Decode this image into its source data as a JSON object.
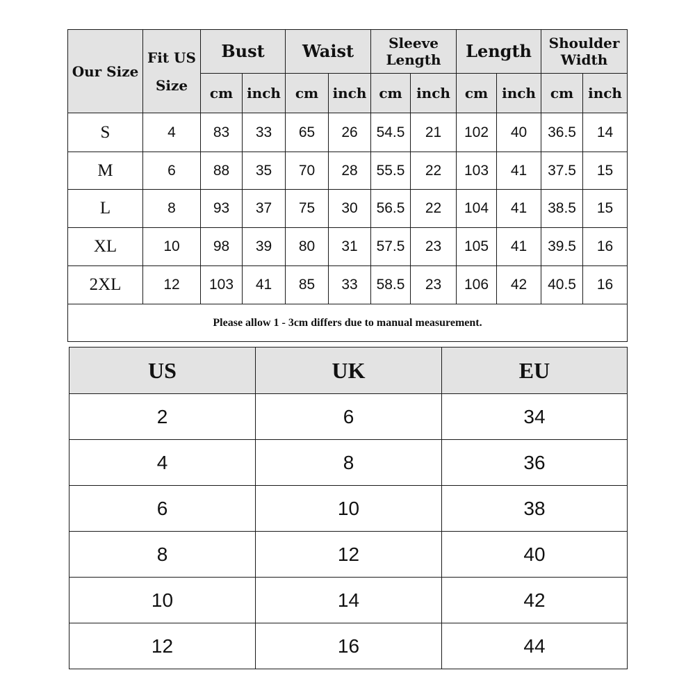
{
  "size_chart": {
    "headers": {
      "our_size": "Our Size",
      "fit_us_line1": "Fit US",
      "fit_us_line2": "Size",
      "bust": "Bust",
      "waist": "Waist",
      "sleeve_line1": "Sleeve",
      "sleeve_line2": "Length",
      "length": "Length",
      "shoulder_line1": "Shoulder",
      "shoulder_line2": "Width",
      "cm": "cm",
      "inch": "inch"
    },
    "rows": [
      [
        "S",
        "4",
        "83",
        "33",
        "65",
        "26",
        "54.5",
        "21",
        "102",
        "40",
        "36.5",
        "14"
      ],
      [
        "M",
        "6",
        "88",
        "35",
        "70",
        "28",
        "55.5",
        "22",
        "103",
        "41",
        "37.5",
        "15"
      ],
      [
        "L",
        "8",
        "93",
        "37",
        "75",
        "30",
        "56.5",
        "22",
        "104",
        "41",
        "38.5",
        "15"
      ],
      [
        "XL",
        "10",
        "98",
        "39",
        "80",
        "31",
        "57.5",
        "23",
        "105",
        "41",
        "39.5",
        "16"
      ],
      [
        "2XL",
        "12",
        "103",
        "41",
        "85",
        "33",
        "58.5",
        "23",
        "106",
        "42",
        "40.5",
        "16"
      ]
    ],
    "note": "Please allow 1 -  3cm differs due to manual measurement."
  },
  "conversion_chart": {
    "headers": [
      "US",
      "UK",
      "EU"
    ],
    "rows": [
      [
        "2",
        "6",
        "34"
      ],
      [
        "4",
        "8",
        "36"
      ],
      [
        "6",
        "10",
        "38"
      ],
      [
        "8",
        "12",
        "40"
      ],
      [
        "10",
        "14",
        "42"
      ],
      [
        "12",
        "16",
        "44"
      ]
    ]
  },
  "colors": {
    "header_bg": "#e3e3e3",
    "border": "#1a1a1a"
  }
}
